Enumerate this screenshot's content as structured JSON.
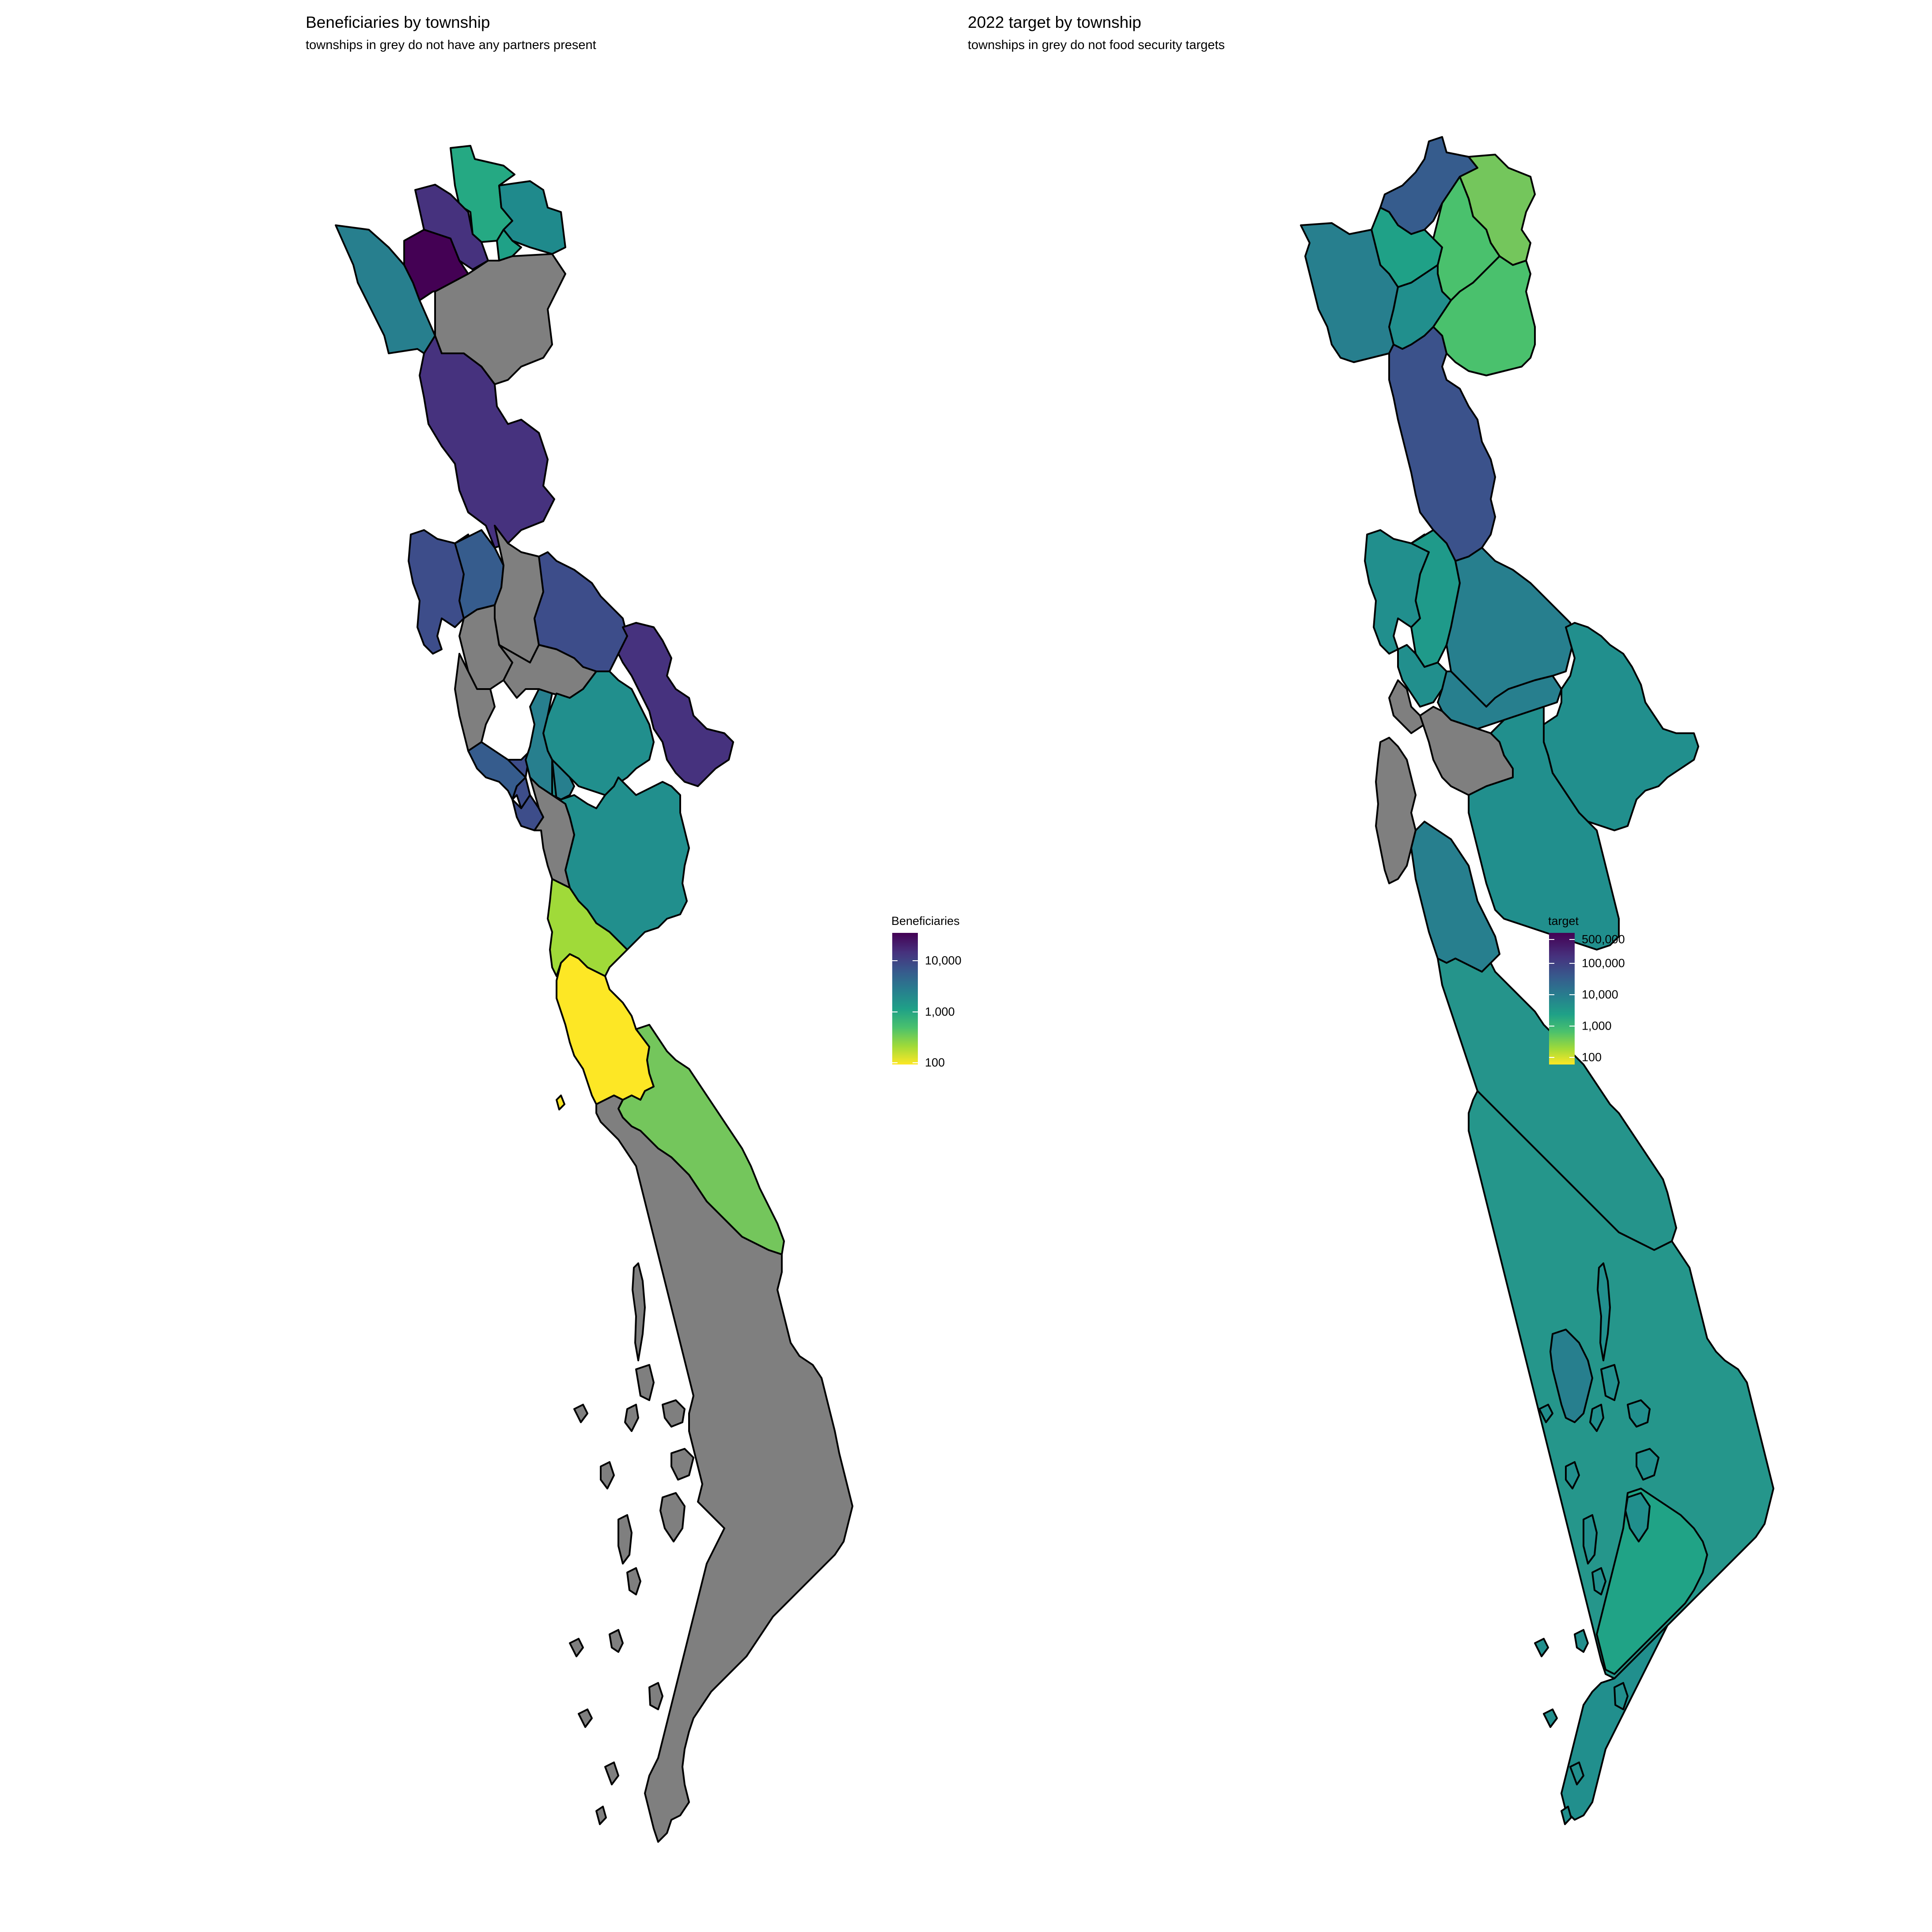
{
  "maps": [
    {
      "id": "beneficiaries",
      "title": "Beneficiaries by township",
      "subtitle": "townships in grey do not have any partners present",
      "legend": {
        "title": "Beneficiaries",
        "scale": "log10",
        "range": [
          70,
          40000
        ],
        "ticks": [
          {
            "label": "10,000",
            "value": 10000
          },
          {
            "label": "1,000",
            "value": 1000
          },
          {
            "label": "100",
            "value": 100
          }
        ]
      },
      "no_data_color": "#7f7f7f"
    },
    {
      "id": "target",
      "title": "2022 target by township",
      "subtitle": "townships in grey do not food security targets",
      "legend": {
        "title": "target",
        "scale": "log10",
        "range": [
          50,
          750000
        ],
        "ticks": [
          {
            "label": "500,000",
            "value": 500000
          },
          {
            "label": "100,000",
            "value": 100000
          },
          {
            "label": "10,000",
            "value": 10000
          },
          {
            "label": "1,000",
            "value": 1000
          },
          {
            "label": "100",
            "value": 100
          }
        ]
      },
      "no_data_color": "#7f7f7f"
    }
  ],
  "colors": {
    "viridis": [
      "#fde725",
      "#a0da39",
      "#4ac16d",
      "#1fa187",
      "#277f8e",
      "#365c8d",
      "#46327e",
      "#440154"
    ],
    "no_data": "#7f7f7f",
    "outline": "#000000"
  }
}
